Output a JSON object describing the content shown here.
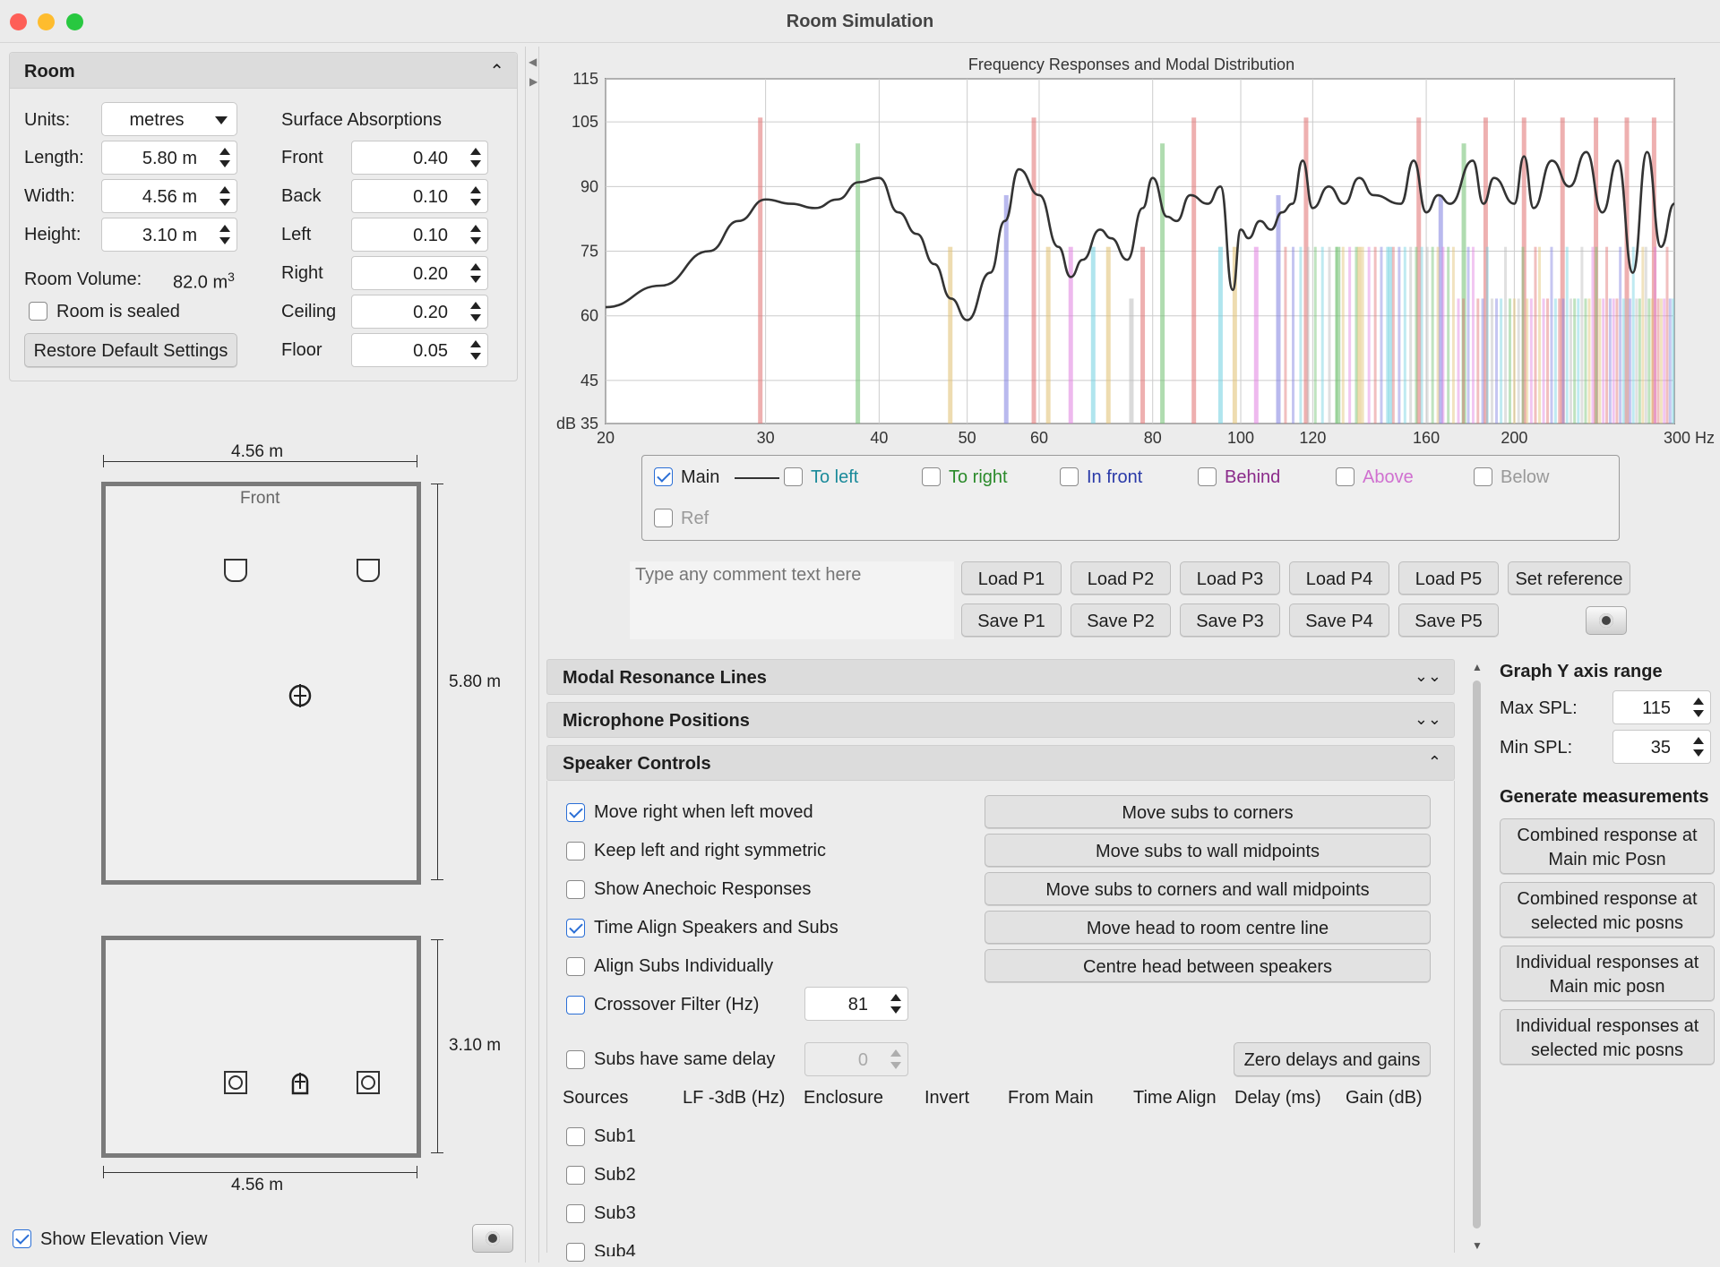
{
  "window": {
    "title": "Room Simulation"
  },
  "room": {
    "header": "Room",
    "units_label": "Units:",
    "units_value": "metres",
    "length_label": "Length:",
    "length_value": "5.80 m",
    "width_label": "Width:",
    "width_value": "4.56 m",
    "height_label": "Height:",
    "height_value": "3.10 m",
    "volume_label": "Room Volume:",
    "volume_value": "82.0 m",
    "volume_sup": "3",
    "sealed_label": "Room is sealed",
    "sealed_checked": false,
    "restore_label": "Restore Default Settings",
    "absorptions_label": "Surface Absorptions",
    "absorptions": [
      {
        "label": "Front",
        "value": "0.40"
      },
      {
        "label": "Back",
        "value": "0.10"
      },
      {
        "label": "Left",
        "value": "0.10"
      },
      {
        "label": "Right",
        "value": "0.20"
      },
      {
        "label": "Ceiling",
        "value": "0.20"
      },
      {
        "label": "Floor",
        "value": "0.05"
      }
    ]
  },
  "plan": {
    "width_top": "4.56 m",
    "front_label": "Front",
    "length_side": "5.80 m",
    "height_side": "3.10 m",
    "width_bottom": "4.56 m",
    "show_elevation_label": "Show Elevation View",
    "show_elevation_checked": true
  },
  "chart_data": {
    "type": "line",
    "title": "Frequency Responses and Modal Distribution",
    "x_scale": "log",
    "xlim": [
      20,
      300
    ],
    "ylim": [
      35,
      115
    ],
    "x_ticks": [
      20,
      30,
      40,
      50,
      60,
      80,
      100,
      120,
      160,
      200,
      300
    ],
    "x_tick_labels": [
      "20",
      "30",
      "40",
      "50",
      "60",
      "80",
      "100",
      "120",
      "160",
      "200",
      "300 Hz"
    ],
    "y_ticks": [
      35,
      45,
      60,
      75,
      90,
      105,
      115
    ],
    "y_tick_labels": [
      "dB 35",
      "45",
      "60",
      "75",
      "90",
      "105",
      "115"
    ],
    "series": [
      {
        "name": "Main",
        "color": "#333333",
        "x": [
          20,
          23,
          26,
          28,
          30,
          32,
          34,
          36,
          38,
          40,
          42,
          44,
          46,
          48,
          50,
          53,
          55,
          57,
          60,
          63,
          65,
          67,
          70,
          72,
          75,
          78,
          80,
          83,
          85,
          88,
          92,
          95,
          98,
          100,
          102,
          105,
          108,
          111,
          114,
          117,
          120,
          125,
          130,
          135,
          140,
          150,
          155,
          160,
          165,
          170,
          180,
          185,
          190,
          200,
          205,
          210,
          220,
          230,
          240,
          250,
          260,
          270,
          280,
          290,
          300
        ],
        "y": [
          62,
          67,
          75,
          82,
          87,
          86,
          85,
          87,
          91,
          92,
          84,
          79,
          72,
          64,
          59,
          70,
          82,
          94,
          88,
          76,
          69,
          73,
          80,
          78,
          73,
          85,
          92,
          83,
          82,
          88,
          86,
          90,
          66,
          80,
          78,
          82,
          80,
          84,
          86,
          96,
          85,
          90,
          86,
          92,
          88,
          86,
          96,
          84,
          88,
          86,
          96,
          86,
          92,
          86,
          97,
          85,
          96,
          90,
          98,
          84,
          96,
          70,
          98,
          76,
          86
        ]
      }
    ],
    "modal_lines": [
      {
        "x": 29.6,
        "y": 106,
        "color": "#e07070"
      },
      {
        "x": 37.9,
        "y": 100,
        "color": "#70c070"
      },
      {
        "x": 47.9,
        "y": 76,
        "color": "#e0c070"
      },
      {
        "x": 55.2,
        "y": 88,
        "color": "#8080e0"
      },
      {
        "x": 59.2,
        "y": 106,
        "color": "#e07070"
      },
      {
        "x": 61.4,
        "y": 76,
        "color": "#e0c070"
      },
      {
        "x": 65.0,
        "y": 76,
        "color": "#e080e0"
      },
      {
        "x": 68.8,
        "y": 76,
        "color": "#70d0e0"
      },
      {
        "x": 71.5,
        "y": 76,
        "color": "#e0c070"
      },
      {
        "x": 75.8,
        "y": 64,
        "color": "#bbbbbb"
      },
      {
        "x": 78.0,
        "y": 76,
        "color": "#e07070"
      },
      {
        "x": 82.0,
        "y": 100,
        "color": "#70c070"
      },
      {
        "x": 88.8,
        "y": 106,
        "color": "#e07070"
      },
      {
        "x": 95.0,
        "y": 76,
        "color": "#70d0e0"
      },
      {
        "x": 98.5,
        "y": 76,
        "color": "#e0c070"
      },
      {
        "x": 104.0,
        "y": 76,
        "color": "#e080e0"
      },
      {
        "x": 110.0,
        "y": 88,
        "color": "#8080e0"
      },
      {
        "x": 118.0,
        "y": 106,
        "color": "#e07070"
      },
      {
        "x": 128.0,
        "y": 76,
        "color": "#70c070"
      },
      {
        "x": 135.0,
        "y": 76,
        "color": "#e0c070"
      },
      {
        "x": 146.0,
        "y": 76,
        "color": "#70d0e0"
      },
      {
        "x": 157.0,
        "y": 106,
        "color": "#e07070"
      },
      {
        "x": 166.0,
        "y": 88,
        "color": "#8080e0"
      },
      {
        "x": 176.0,
        "y": 100,
        "color": "#70c070"
      },
      {
        "x": 186.0,
        "y": 106,
        "color": "#e07070"
      },
      {
        "x": 205.0,
        "y": 106,
        "color": "#e07070"
      },
      {
        "x": 226.0,
        "y": 106,
        "color": "#e07070"
      },
      {
        "x": 246.0,
        "y": 106,
        "color": "#e07070"
      },
      {
        "x": 266.0,
        "y": 106,
        "color": "#e07070"
      },
      {
        "x": 285.0,
        "y": 106,
        "color": "#e07070"
      }
    ]
  },
  "legend": {
    "items": [
      {
        "label": "Main",
        "checked": true,
        "color": "#1e1e1e"
      },
      {
        "label": "To left",
        "checked": false,
        "color": "#1a8a9a"
      },
      {
        "label": "To right",
        "checked": false,
        "color": "#2a8a2a"
      },
      {
        "label": "In front",
        "checked": false,
        "color": "#2a3aa8"
      },
      {
        "label": "Behind",
        "checked": false,
        "color": "#8a2a8a"
      },
      {
        "label": "Above",
        "checked": false,
        "color": "#d070d0"
      },
      {
        "label": "Below",
        "checked": false,
        "color": "#999999"
      },
      {
        "label": "Ref",
        "checked": false,
        "color": "#999999"
      }
    ]
  },
  "comment": {
    "placeholder": "Type any comment text here"
  },
  "presets": {
    "load": [
      "Load P1",
      "Load P2",
      "Load P3",
      "Load P4",
      "Load P5"
    ],
    "save": [
      "Save P1",
      "Save P2",
      "Save P3",
      "Save P4",
      "Save P5"
    ],
    "set_reference": "Set reference"
  },
  "sections": {
    "modal": "Modal Resonance Lines",
    "mic": "Microphone Positions",
    "speaker": "Speaker Controls"
  },
  "speaker": {
    "options": [
      {
        "label": "Move right when left moved",
        "checked": true
      },
      {
        "label": "Keep left and right symmetric",
        "checked": false
      },
      {
        "label": "Show Anechoic Responses",
        "checked": false
      },
      {
        "label": "Time Align Speakers and Subs",
        "checked": true
      },
      {
        "label": "Align Subs Individually",
        "checked": false
      },
      {
        "label": "Crossover Filter (Hz)",
        "checked": false
      }
    ],
    "crossover_value": "81",
    "same_delay_label": "Subs have same delay",
    "same_delay_value": "0",
    "buttons": [
      "Move subs to corners",
      "Move subs to wall midpoints",
      "Move subs to corners and wall midpoints",
      "Move head to room centre line",
      "Centre head between speakers"
    ],
    "zero_button": "Zero delays and gains",
    "columns": [
      "Sources",
      "LF -3dB (Hz)",
      "Enclosure",
      "Invert",
      "From Main",
      "Time Align",
      "Delay (ms)",
      "Gain (dB)"
    ],
    "subs": [
      "Sub1",
      "Sub2",
      "Sub3",
      "Sub4"
    ]
  },
  "graph_range": {
    "title": "Graph Y axis range",
    "max_label": "Max SPL:",
    "max_value": "115",
    "min_label": "Min SPL:",
    "min_value": "35"
  },
  "generate": {
    "title": "Generate measurements",
    "buttons": [
      [
        "Combined response at",
        "Main mic Posn"
      ],
      [
        "Combined response at",
        "selected mic posns"
      ],
      [
        "Individual responses at",
        "Main mic posn"
      ],
      [
        "Individual responses at",
        "selected mic posns"
      ]
    ]
  }
}
